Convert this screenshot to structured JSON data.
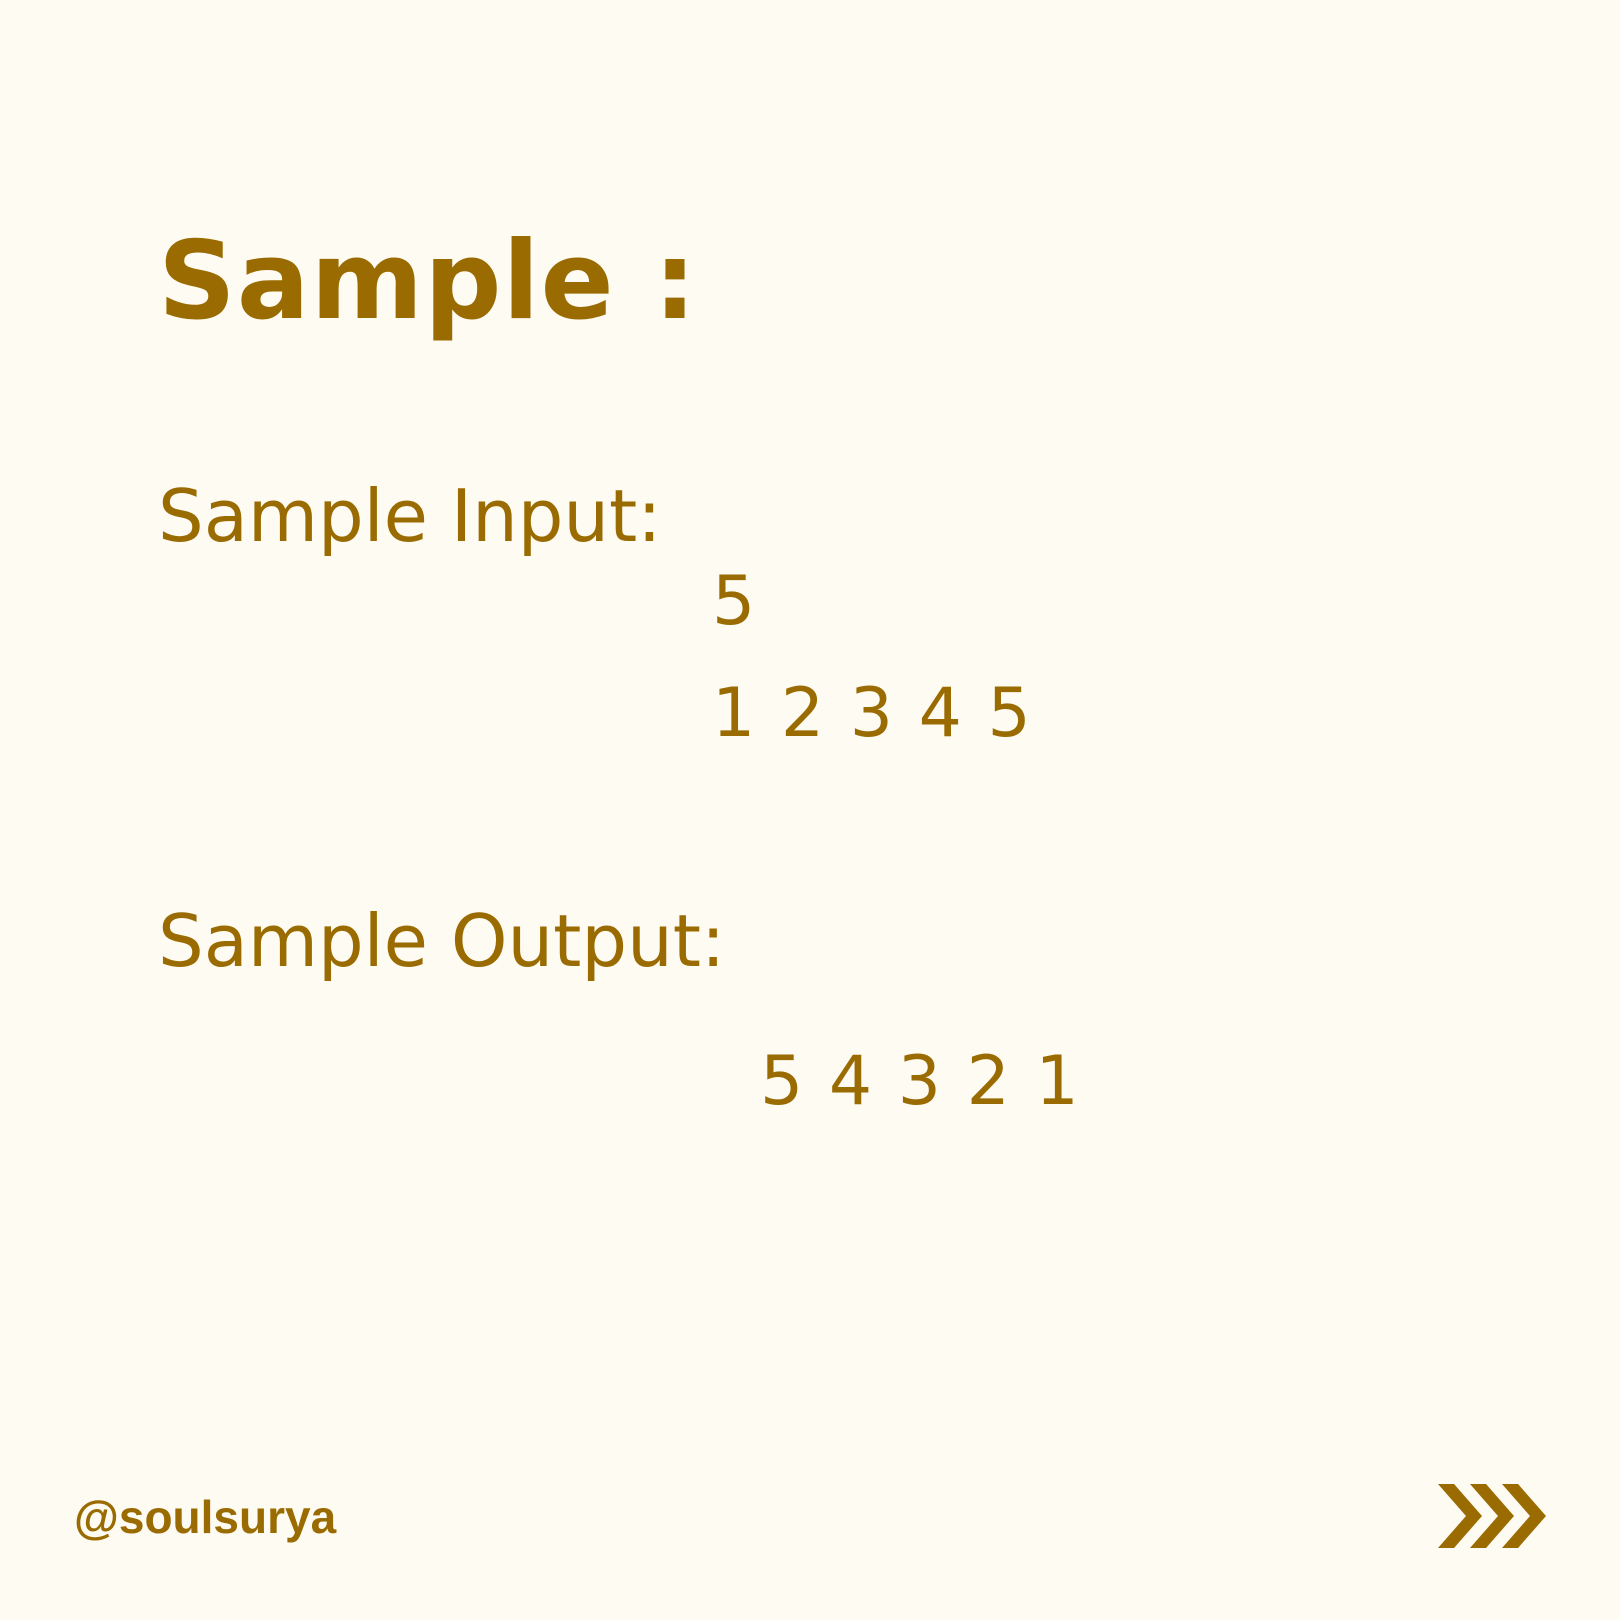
{
  "title": "Sample :",
  "input": {
    "label": "Sample Input:",
    "lines": [
      "5",
      "1 2 3 4 5"
    ]
  },
  "output": {
    "label": "Sample Output:",
    "lines": [
      "5 4 3 2 1"
    ]
  },
  "footer": {
    "handle": "@soulsurya",
    "next_icon": "triple-chevron-right-icon"
  },
  "colors": {
    "background": "#fefbf3",
    "accent": "#9a6b00"
  }
}
